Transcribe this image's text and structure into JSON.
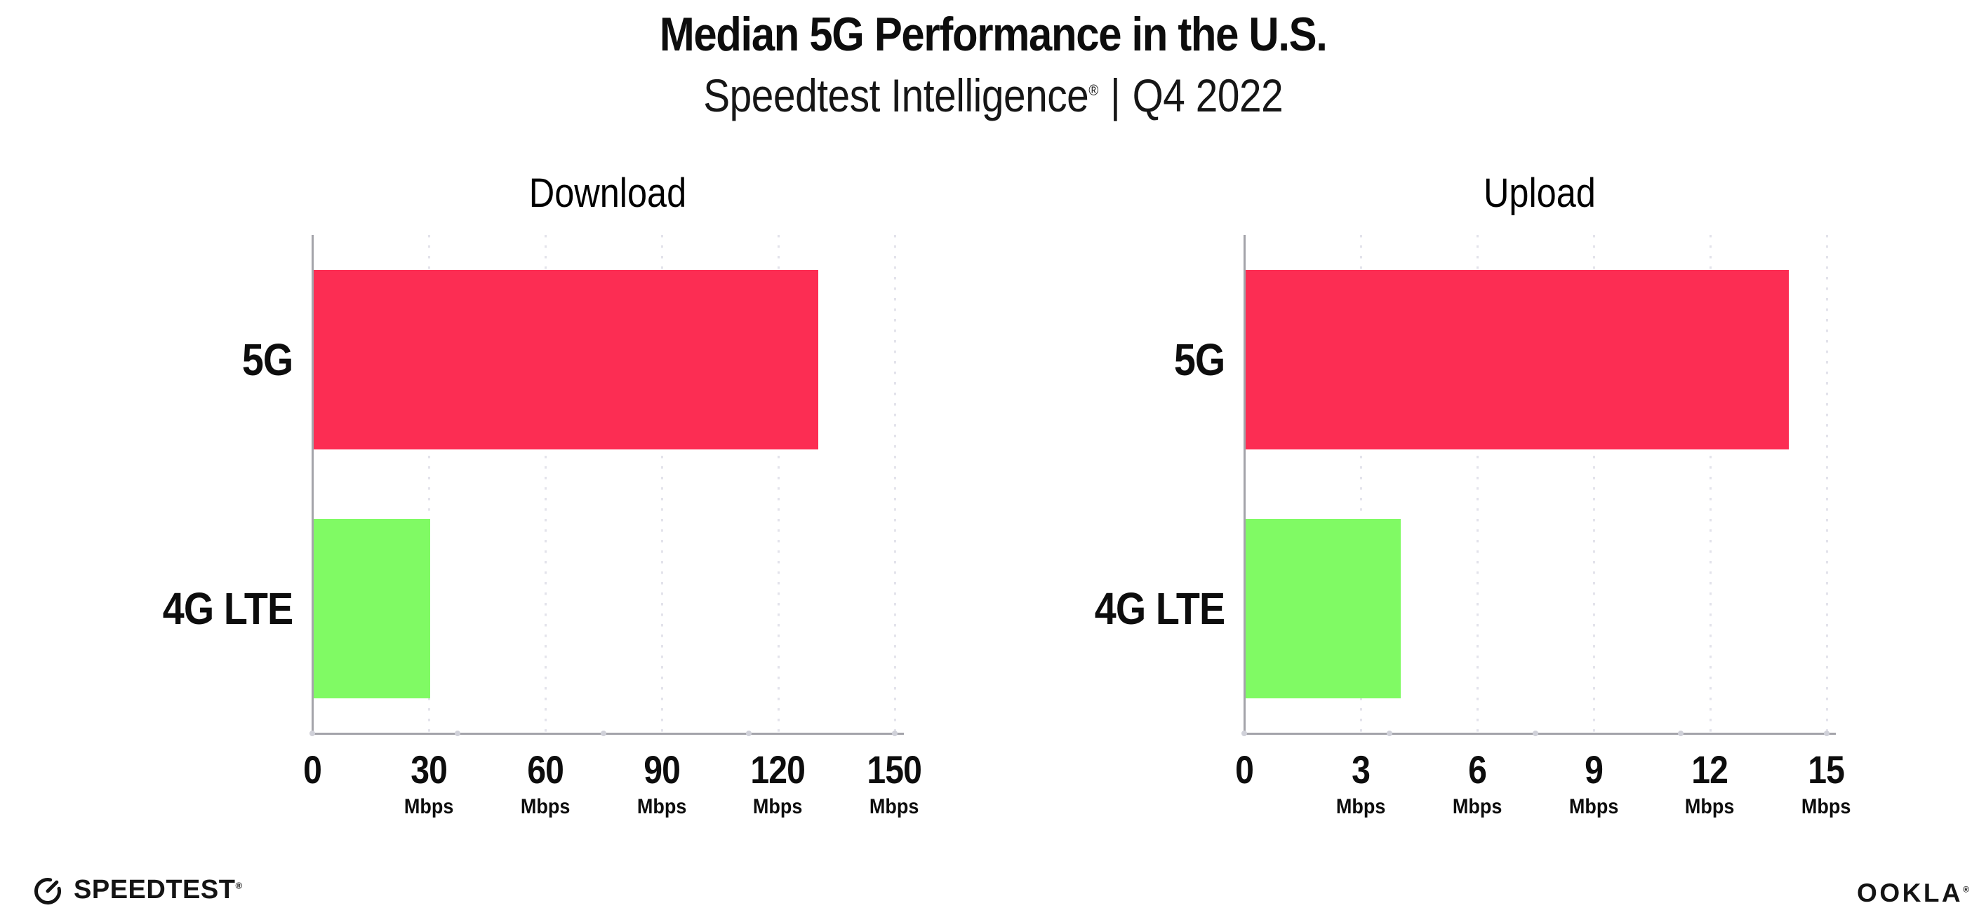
{
  "header": {
    "title": "Median 5G Performance in the U.S.",
    "subtitle": {
      "brand": "Speedtest Intelligence",
      "registered_mark": "®",
      "separator": "|",
      "period": "Q4 2022"
    }
  },
  "chart_data": [
    {
      "type": "bar",
      "orientation": "horizontal",
      "title": "Download",
      "categories": [
        "5G",
        "4G LTE"
      ],
      "values": [
        130,
        30
      ],
      "unit": "Mbps",
      "xlim": [
        0,
        150
      ],
      "xticks": [
        0,
        30,
        60,
        90,
        120,
        150
      ],
      "bar_colors": [
        "#fc2d53",
        "#80fa64"
      ],
      "grid": "vertical-dotted",
      "legend": "none"
    },
    {
      "type": "bar",
      "orientation": "horizontal",
      "title": "Upload",
      "categories": [
        "5G",
        "4G LTE"
      ],
      "values": [
        14,
        4
      ],
      "unit": "Mbps",
      "xlim": [
        0,
        15
      ],
      "xticks": [
        0,
        3,
        6,
        9,
        12,
        15
      ],
      "bar_colors": [
        "#fc2d53",
        "#80fa64"
      ],
      "grid": "vertical-dotted",
      "legend": "none"
    }
  ],
  "footer": {
    "speedtest_logo": "SPEEDTEST",
    "speedtest_mark": "®",
    "ookla_logo": "OOKLA",
    "ookla_mark": "®"
  },
  "colors": {
    "bar_5g": "#fc2d53",
    "bar_4g_lte": "#80fa64",
    "axis": "#a4a4aa",
    "gridline": "#e3e3eb",
    "text": "#0d0d0d",
    "background": "#ffffff"
  }
}
